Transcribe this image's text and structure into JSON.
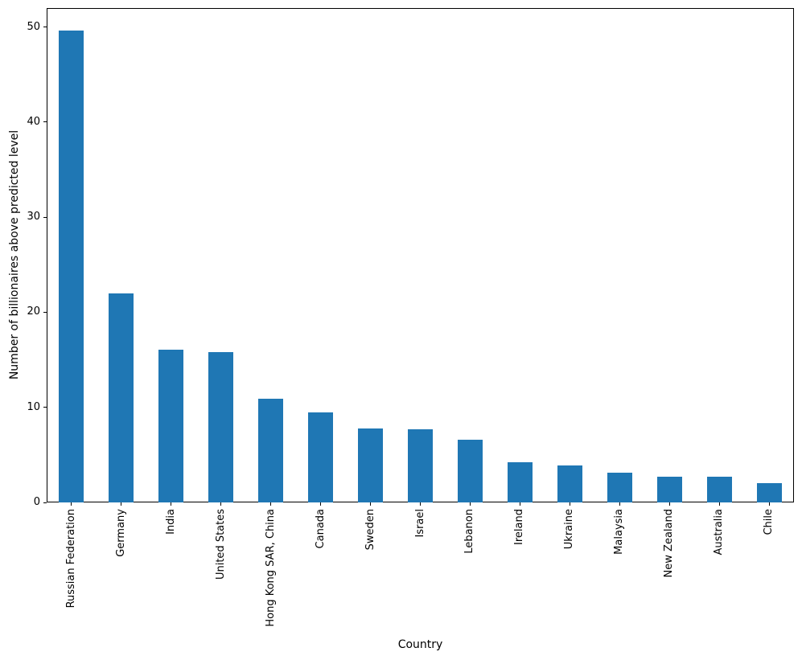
{
  "chart_data": {
    "type": "bar",
    "title": "",
    "xlabel": "Country",
    "ylabel": "Number of billionaires above predicted level",
    "categories": [
      "Russian Federation",
      "Germany",
      "India",
      "United States",
      "Hong Kong SAR, China",
      "Canada",
      "Sweden",
      "Israel",
      "Lebanon",
      "Ireland",
      "Ukraine",
      "Malaysia",
      "New Zealand",
      "Australia",
      "Chile"
    ],
    "values": [
      49.6,
      22.0,
      16.1,
      15.8,
      10.9,
      9.5,
      7.8,
      7.7,
      6.6,
      4.2,
      3.9,
      3.1,
      2.7,
      2.7,
      2.0
    ],
    "yticks": [
      0,
      10,
      20,
      30,
      40,
      50
    ],
    "ylim": [
      0,
      52
    ],
    "bar_color": "#1f77b4",
    "bar_width_fraction": 0.5,
    "grid": false,
    "legend": null
  }
}
